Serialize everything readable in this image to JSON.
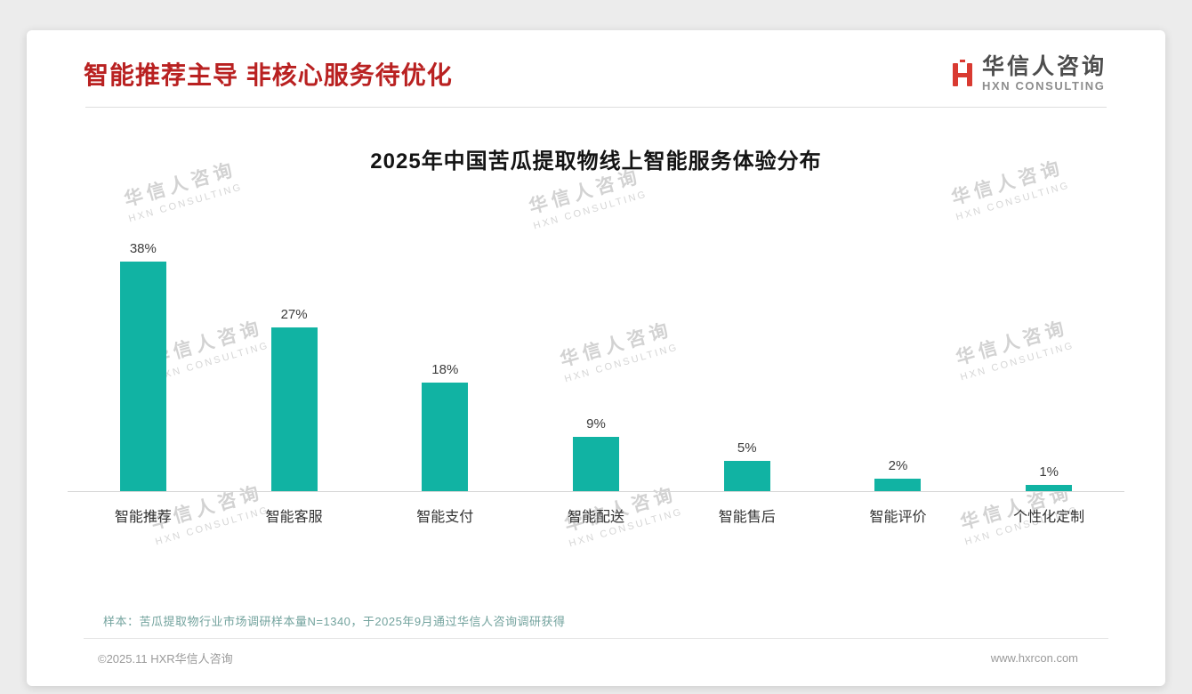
{
  "page": {
    "title": "智能推荐主导 非核心服务待优化",
    "accent_color": "#b92121",
    "logo": {
      "cn": "华信人咨询",
      "en": "HXN CONSULTING",
      "mark_color": "#d93a31"
    },
    "sample_note": "样本：苦瓜提取物行业市场调研样本量N=1340，于2025年9月通过华信人咨询调研获得",
    "footer_left": "©2025.11 HXR华信人咨询",
    "footer_right": "www.hxrcon.com"
  },
  "watermark": {
    "cn": "华信人咨询",
    "en": "HXN CONSULTING"
  },
  "chart_data": {
    "type": "bar",
    "title": "2025年中国苦瓜提取物线上智能服务体验分布",
    "categories": [
      "智能推荐",
      "智能客服",
      "智能支付",
      "智能配送",
      "智能售后",
      "智能评价",
      "个性化定制"
    ],
    "values": [
      38,
      27,
      18,
      9,
      5,
      2,
      1
    ],
    "value_labels": [
      "38%",
      "27%",
      "18%",
      "9%",
      "5%",
      "2%",
      "1%"
    ],
    "unit": "%",
    "bar_color": "#11b3a3",
    "ylim": [
      0,
      40
    ],
    "grid": false,
    "legend": "none"
  }
}
